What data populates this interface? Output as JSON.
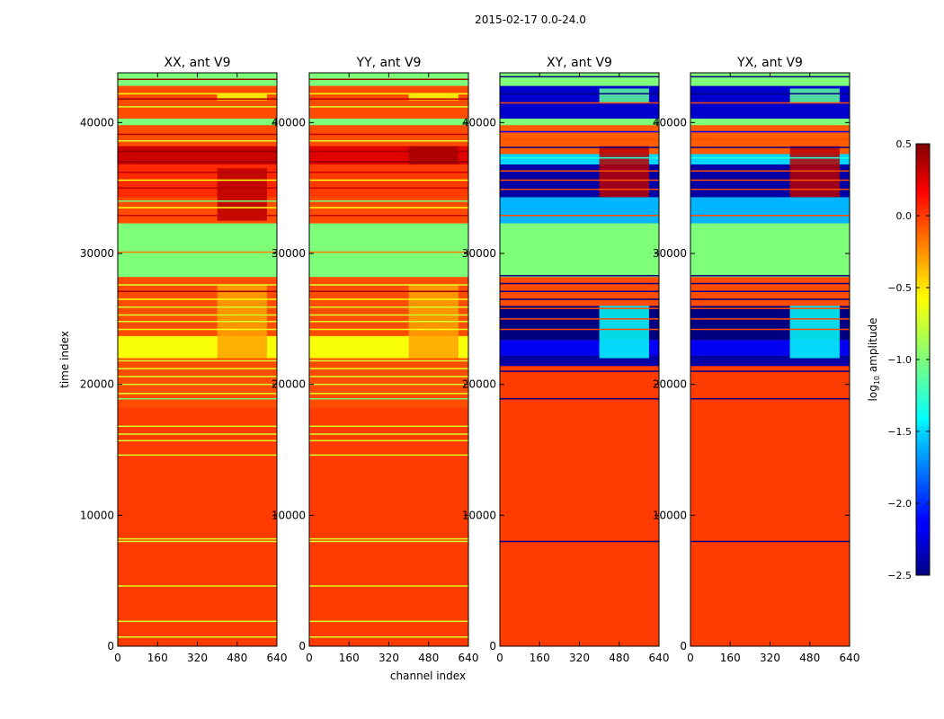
{
  "suptitle": "2015-02-17 0.0-24.0",
  "ylabel": "time index",
  "xlabel": "channel index",
  "colorbar": {
    "label_prefix": "log",
    "label_subscript": "10",
    "label_suffix": " amplitude",
    "ticks": [
      "0.5",
      "0.0",
      "−0.5",
      "−1.0",
      "−1.5",
      "−2.0",
      "−2.5"
    ],
    "tick_values": [
      0.5,
      0.0,
      -0.5,
      -1.0,
      -1.5,
      -2.0,
      -2.5
    ],
    "range": [
      -2.5,
      0.5
    ],
    "colormap": "jet"
  },
  "chart_data": [
    {
      "type": "heatmap",
      "title": "XX, ant V9",
      "xlim": [
        0,
        640
      ],
      "ylim": [
        0,
        43800
      ],
      "xticks": [
        "0",
        "160",
        "320",
        "480",
        "640"
      ],
      "yticks": [
        "0",
        "10000",
        "20000",
        "30000",
        "40000"
      ],
      "xtick_values": [
        0,
        160,
        320,
        480,
        640
      ],
      "ytick_values": [
        0,
        10000,
        20000,
        30000,
        40000
      ],
      "base_value": 0.0,
      "bands": [
        {
          "y": [
            0,
            18200
          ],
          "value": 0.0
        },
        {
          "y": [
            18200,
            22000
          ],
          "value": -0.05
        },
        {
          "y": [
            22000,
            23700
          ],
          "value": -0.6
        },
        {
          "y": [
            23700,
            28200
          ],
          "value": -0.05
        },
        {
          "y": [
            28200,
            32300
          ],
          "value": -1.0
        },
        {
          "y": [
            32300,
            34300
          ],
          "value": -0.05
        },
        {
          "y": [
            34300,
            36800
          ],
          "value": 0.05
        },
        {
          "y": [
            36800,
            38200
          ],
          "value": 0.3
        },
        {
          "y": [
            38200,
            39800
          ],
          "value": -0.05
        },
        {
          "y": [
            39800,
            40300
          ],
          "value": -1.0
        },
        {
          "y": [
            40300,
            42800
          ],
          "value": -0.05
        },
        {
          "y": [
            42800,
            43800
          ],
          "value": -1.0
        }
      ],
      "lines": [
        {
          "y": 700,
          "value": -0.7
        },
        {
          "y": 1900,
          "value": -0.7
        },
        {
          "y": 4600,
          "value": -0.7
        },
        {
          "y": 8000,
          "value": -0.7
        },
        {
          "y": 8200,
          "value": -0.7
        },
        {
          "y": 14600,
          "value": -0.7
        },
        {
          "y": 15700,
          "value": -0.7
        },
        {
          "y": 16200,
          "value": -0.7
        },
        {
          "y": 16800,
          "value": -0.7
        },
        {
          "y": 18900,
          "value": -1.0
        },
        {
          "y": 19300,
          "value": -0.7
        },
        {
          "y": 20000,
          "value": -0.7
        },
        {
          "y": 20600,
          "value": -0.7
        },
        {
          "y": 21200,
          "value": -0.7
        },
        {
          "y": 21800,
          "value": -0.7
        },
        {
          "y": 24200,
          "value": -0.6
        },
        {
          "y": 24800,
          "value": -0.7
        },
        {
          "y": 25300,
          "value": -0.7
        },
        {
          "y": 25900,
          "value": -0.7
        },
        {
          "y": 26500,
          "value": -0.6
        },
        {
          "y": 27100,
          "value": 0.4
        },
        {
          "y": 27600,
          "value": -0.7
        },
        {
          "y": 30100,
          "value": -0.2
        },
        {
          "y": 32900,
          "value": 0.3
        },
        {
          "y": 33500,
          "value": -0.6
        },
        {
          "y": 34000,
          "value": -1.0
        },
        {
          "y": 35000,
          "value": 0.35
        },
        {
          "y": 35600,
          "value": -0.6
        },
        {
          "y": 36200,
          "value": 0.35
        },
        {
          "y": 37000,
          "value": 0.45
        },
        {
          "y": 37800,
          "value": 0.45
        },
        {
          "y": 38600,
          "value": -0.7
        },
        {
          "y": 39100,
          "value": 0.4
        },
        {
          "y": 41200,
          "value": -0.7
        },
        {
          "y": 41800,
          "value": 0.4
        },
        {
          "y": 42200,
          "value": -0.6
        },
        {
          "y": 43300,
          "value": 0.4
        }
      ],
      "patches": [
        {
          "x": [
            400,
            600
          ],
          "y": [
            22000,
            27600
          ],
          "value": -0.3
        },
        {
          "x": [
            400,
            600
          ],
          "y": [
            32500,
            36500
          ],
          "value": 0.35
        },
        {
          "x": [
            400,
            600
          ],
          "y": [
            41700,
            42200
          ],
          "value": -0.6
        }
      ]
    },
    {
      "type": "heatmap",
      "title": "YY, ant V9",
      "xlim": [
        0,
        640
      ],
      "ylim": [
        0,
        43800
      ],
      "xticks": [
        "0",
        "160",
        "320",
        "480",
        "640"
      ],
      "yticks": [
        "0",
        "10000",
        "20000",
        "30000",
        "40000"
      ],
      "xtick_values": [
        0,
        160,
        320,
        480,
        640
      ],
      "ytick_values": [
        0,
        10000,
        20000,
        30000,
        40000
      ],
      "base_value": 0.0,
      "bands": [
        {
          "y": [
            0,
            18200
          ],
          "value": 0.0
        },
        {
          "y": [
            18200,
            22000
          ],
          "value": -0.05
        },
        {
          "y": [
            22000,
            23700
          ],
          "value": -0.6
        },
        {
          "y": [
            23700,
            28200
          ],
          "value": -0.05
        },
        {
          "y": [
            28200,
            32300
          ],
          "value": -1.0
        },
        {
          "y": [
            32300,
            34300
          ],
          "value": -0.05
        },
        {
          "y": [
            34300,
            36800
          ],
          "value": 0.0
        },
        {
          "y": [
            36800,
            38200
          ],
          "value": 0.25
        },
        {
          "y": [
            38200,
            39800
          ],
          "value": -0.05
        },
        {
          "y": [
            39800,
            40300
          ],
          "value": -1.0
        },
        {
          "y": [
            40300,
            42800
          ],
          "value": -0.05
        },
        {
          "y": [
            42800,
            43800
          ],
          "value": -1.0
        }
      ],
      "lines": [
        {
          "y": 700,
          "value": -0.7
        },
        {
          "y": 1900,
          "value": -0.7
        },
        {
          "y": 4600,
          "value": -0.7
        },
        {
          "y": 8000,
          "value": -0.7
        },
        {
          "y": 8200,
          "value": -0.7
        },
        {
          "y": 14600,
          "value": -0.7
        },
        {
          "y": 15700,
          "value": -0.7
        },
        {
          "y": 16200,
          "value": -0.7
        },
        {
          "y": 16800,
          "value": -0.7
        },
        {
          "y": 18900,
          "value": -1.0
        },
        {
          "y": 19300,
          "value": -0.7
        },
        {
          "y": 20000,
          "value": -0.7
        },
        {
          "y": 20600,
          "value": -0.7
        },
        {
          "y": 21200,
          "value": -0.7
        },
        {
          "y": 21800,
          "value": -0.7
        },
        {
          "y": 24200,
          "value": -0.6
        },
        {
          "y": 24800,
          "value": -0.7
        },
        {
          "y": 25300,
          "value": -0.7
        },
        {
          "y": 25900,
          "value": -0.7
        },
        {
          "y": 26500,
          "value": -0.6
        },
        {
          "y": 27100,
          "value": 0.4
        },
        {
          "y": 27600,
          "value": -0.7
        },
        {
          "y": 30100,
          "value": -0.2
        },
        {
          "y": 32900,
          "value": 0.3
        },
        {
          "y": 33500,
          "value": -0.6
        },
        {
          "y": 34000,
          "value": -1.0
        },
        {
          "y": 35000,
          "value": 0.3
        },
        {
          "y": 35600,
          "value": -0.6
        },
        {
          "y": 36200,
          "value": 0.3
        },
        {
          "y": 37000,
          "value": 0.45
        },
        {
          "y": 37800,
          "value": 0.4
        },
        {
          "y": 38600,
          "value": -0.7
        },
        {
          "y": 39100,
          "value": 0.35
        },
        {
          "y": 41200,
          "value": -0.7
        },
        {
          "y": 41800,
          "value": 0.35
        },
        {
          "y": 42200,
          "value": -0.6
        },
        {
          "y": 43300,
          "value": 0.4
        }
      ],
      "patches": [
        {
          "x": [
            400,
            600
          ],
          "y": [
            22000,
            27600
          ],
          "value": -0.3
        },
        {
          "x": [
            400,
            600
          ],
          "y": [
            36800,
            38200
          ],
          "value": 0.4
        },
        {
          "x": [
            400,
            600
          ],
          "y": [
            41700,
            42200
          ],
          "value": -0.6
        }
      ]
    },
    {
      "type": "heatmap",
      "title": "XY, ant V9",
      "xlim": [
        0,
        640
      ],
      "ylim": [
        0,
        43800
      ],
      "xticks": [
        "0",
        "160",
        "320",
        "480",
        "640"
      ],
      "yticks": [
        "0",
        "10000",
        "20000",
        "30000",
        "40000"
      ],
      "xtick_values": [
        0,
        160,
        320,
        480,
        640
      ],
      "ytick_values": [
        0,
        10000,
        20000,
        30000,
        40000
      ],
      "base_value": 0.0,
      "bands": [
        {
          "y": [
            0,
            21400
          ],
          "value": 0.0
        },
        {
          "y": [
            21400,
            22200
          ],
          "value": -2.4
        },
        {
          "y": [
            22200,
            23400
          ],
          "value": -2.2
        },
        {
          "y": [
            23400,
            26000
          ],
          "value": -2.5
        },
        {
          "y": [
            26000,
            28200
          ],
          "value": -0.05
        },
        {
          "y": [
            28200,
            32300
          ],
          "value": -1.0
        },
        {
          "y": [
            32300,
            34300
          ],
          "value": -1.6
        },
        {
          "y": [
            34300,
            36800
          ],
          "value": -2.4
        },
        {
          "y": [
            36800,
            37600
          ],
          "value": -1.5
        },
        {
          "y": [
            37600,
            39800
          ],
          "value": -0.1
        },
        {
          "y": [
            39800,
            40300
          ],
          "value": -1.0
        },
        {
          "y": [
            40300,
            42800
          ],
          "value": -2.3
        },
        {
          "y": [
            42800,
            43800
          ],
          "value": -1.0
        }
      ],
      "lines": [
        {
          "y": 8000,
          "value": -2.5
        },
        {
          "y": 18900,
          "value": -2.5
        },
        {
          "y": 21000,
          "value": -2.5
        },
        {
          "y": 24200,
          "value": -0.05
        },
        {
          "y": 25000,
          "value": -0.05
        },
        {
          "y": 25800,
          "value": -0.05
        },
        {
          "y": 26500,
          "value": -2.5
        },
        {
          "y": 27100,
          "value": -2.5
        },
        {
          "y": 27700,
          "value": -2.5
        },
        {
          "y": 28300,
          "value": -2.5
        },
        {
          "y": 32900,
          "value": -0.05
        },
        {
          "y": 33500,
          "value": -1.6
        },
        {
          "y": 34900,
          "value": -0.05
        },
        {
          "y": 35600,
          "value": -0.05
        },
        {
          "y": 36300,
          "value": -0.05
        },
        {
          "y": 37300,
          "value": -1.3
        },
        {
          "y": 38100,
          "value": -2.5
        },
        {
          "y": 38700,
          "value": -0.05
        },
        {
          "y": 39300,
          "value": -2.2
        },
        {
          "y": 41500,
          "value": -0.05
        },
        {
          "y": 42200,
          "value": -2.5
        },
        {
          "y": 43500,
          "value": -2.5
        }
      ],
      "patches": [
        {
          "x": [
            400,
            600
          ],
          "y": [
            22000,
            26000
          ],
          "value": -1.4
        },
        {
          "x": [
            400,
            600
          ],
          "y": [
            34300,
            38200
          ],
          "value": 0.35
        },
        {
          "x": [
            400,
            600
          ],
          "y": [
            41500,
            42600
          ],
          "value": -1.1
        }
      ]
    },
    {
      "type": "heatmap",
      "title": "YX, ant V9",
      "xlim": [
        0,
        640
      ],
      "ylim": [
        0,
        43800
      ],
      "xticks": [
        "0",
        "160",
        "320",
        "480",
        "640"
      ],
      "yticks": [
        "0",
        "10000",
        "20000",
        "30000",
        "40000"
      ],
      "xtick_values": [
        0,
        160,
        320,
        480,
        640
      ],
      "ytick_values": [
        0,
        10000,
        20000,
        30000,
        40000
      ],
      "base_value": 0.0,
      "bands": [
        {
          "y": [
            0,
            21400
          ],
          "value": 0.0
        },
        {
          "y": [
            21400,
            22200
          ],
          "value": -2.4
        },
        {
          "y": [
            22200,
            23400
          ],
          "value": -2.2
        },
        {
          "y": [
            23400,
            26000
          ],
          "value": -2.5
        },
        {
          "y": [
            26000,
            28200
          ],
          "value": -0.05
        },
        {
          "y": [
            28200,
            32300
          ],
          "value": -1.0
        },
        {
          "y": [
            32300,
            34300
          ],
          "value": -1.6
        },
        {
          "y": [
            34300,
            36800
          ],
          "value": -2.4
        },
        {
          "y": [
            36800,
            37600
          ],
          "value": -1.5
        },
        {
          "y": [
            37600,
            39800
          ],
          "value": -0.1
        },
        {
          "y": [
            39800,
            40300
          ],
          "value": -1.0
        },
        {
          "y": [
            40300,
            42800
          ],
          "value": -2.3
        },
        {
          "y": [
            42800,
            43800
          ],
          "value": -1.0
        }
      ],
      "lines": [
        {
          "y": 8000,
          "value": -2.5
        },
        {
          "y": 18900,
          "value": -2.5
        },
        {
          "y": 21000,
          "value": -2.5
        },
        {
          "y": 24200,
          "value": -0.05
        },
        {
          "y": 25000,
          "value": -0.05
        },
        {
          "y": 25800,
          "value": -0.05
        },
        {
          "y": 26500,
          "value": -2.5
        },
        {
          "y": 27100,
          "value": -2.5
        },
        {
          "y": 27700,
          "value": -2.5
        },
        {
          "y": 28300,
          "value": -2.5
        },
        {
          "y": 32900,
          "value": -0.05
        },
        {
          "y": 33500,
          "value": -1.6
        },
        {
          "y": 34900,
          "value": -0.05
        },
        {
          "y": 35600,
          "value": -0.05
        },
        {
          "y": 36300,
          "value": -0.05
        },
        {
          "y": 37300,
          "value": -1.3
        },
        {
          "y": 38100,
          "value": -2.5
        },
        {
          "y": 38700,
          "value": -0.05
        },
        {
          "y": 39300,
          "value": -2.2
        },
        {
          "y": 41500,
          "value": -0.05
        },
        {
          "y": 42200,
          "value": -2.5
        },
        {
          "y": 43500,
          "value": -2.5
        }
      ],
      "patches": [
        {
          "x": [
            400,
            600
          ],
          "y": [
            22000,
            26000
          ],
          "value": -1.4
        },
        {
          "x": [
            400,
            600
          ],
          "y": [
            34300,
            38200
          ],
          "value": 0.35
        },
        {
          "x": [
            400,
            600
          ],
          "y": [
            41500,
            42600
          ],
          "value": -1.1
        }
      ]
    }
  ]
}
